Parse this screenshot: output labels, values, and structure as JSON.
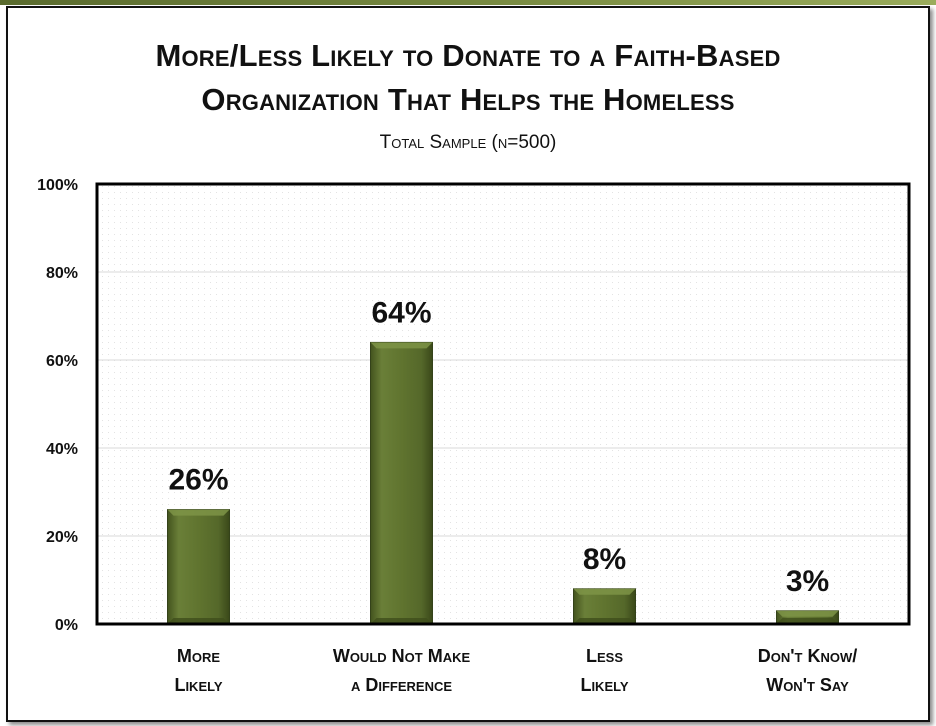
{
  "colors": {
    "bar": "#5f7330",
    "bar_light": "#7e9446",
    "bar_dark": "#3f4e1c",
    "axis": "#000000",
    "grid": "#d9d9d9"
  },
  "chart_data": {
    "type": "bar",
    "title_line1": "More/Less Likely to  Donate to a Faith-Based",
    "title_line2": "Organization That Helps the Homeless",
    "subtitle": "Total Sample (n=500)",
    "categories": [
      "More\nLikely",
      "Would Not Make\na Difference",
      "Less\nLikely",
      "Don't Know/\nWon't Say"
    ],
    "values": [
      26,
      64,
      8,
      3
    ],
    "data_labels": [
      "26%",
      "64%",
      "8%",
      "3%"
    ],
    "ylim": [
      0,
      100
    ],
    "yticks": [
      0,
      20,
      40,
      60,
      80,
      100
    ],
    "ytick_labels": [
      "0%",
      "20%",
      "40%",
      "60%",
      "80%",
      "100%"
    ],
    "grid": true,
    "legend": "none"
  }
}
